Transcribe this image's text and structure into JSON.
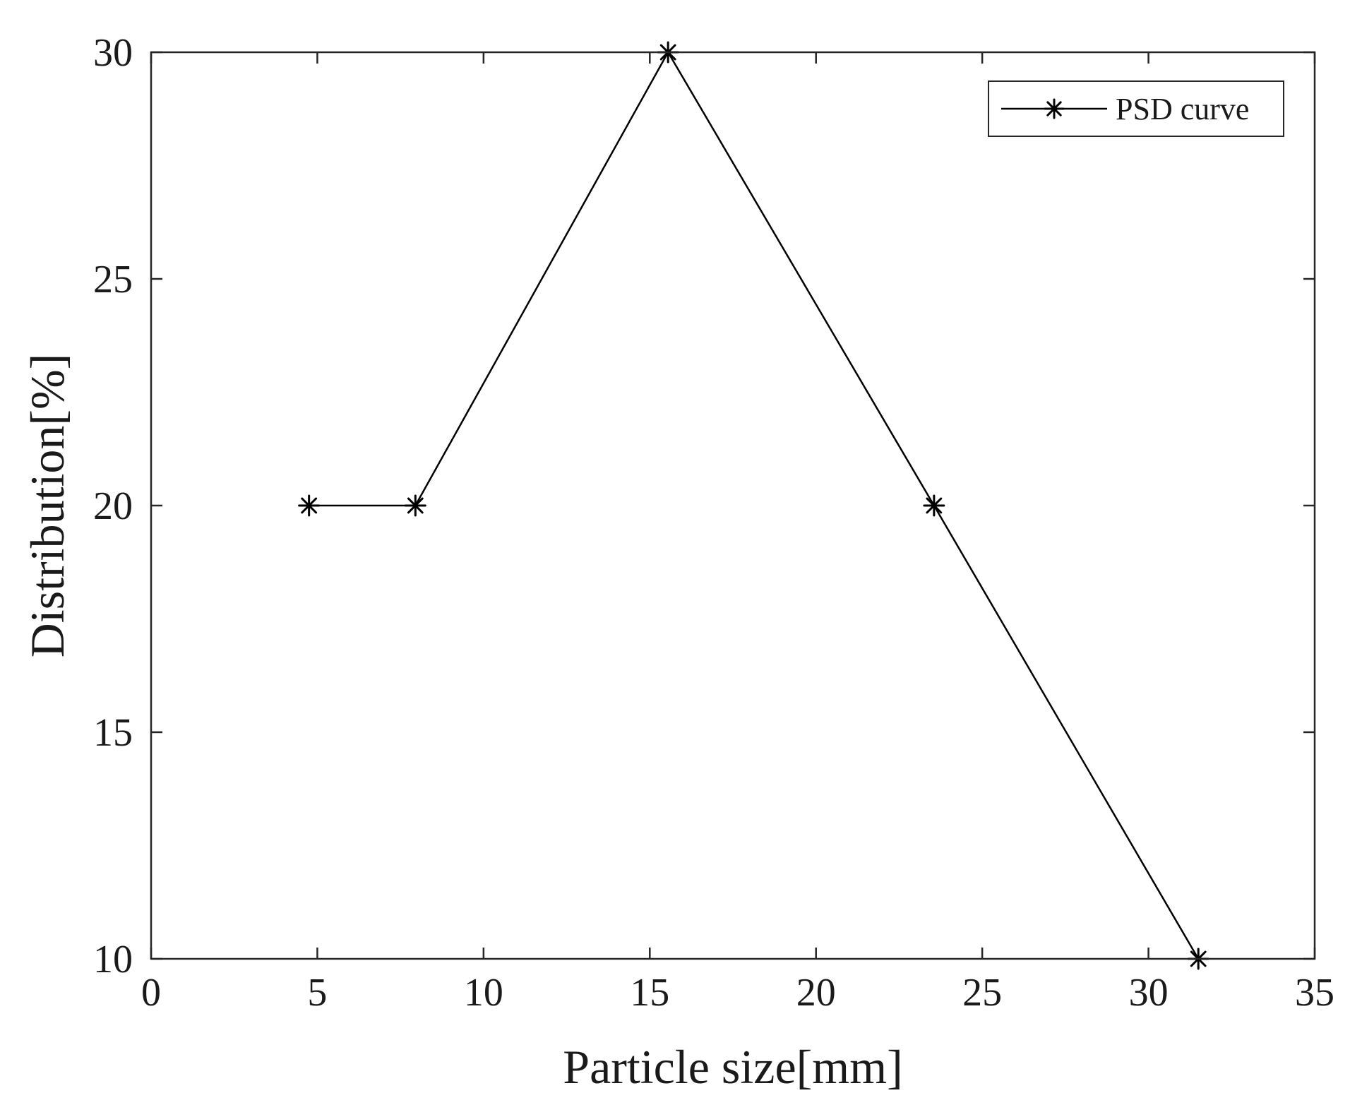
{
  "chart_data": {
    "type": "line",
    "title": "",
    "xlabel": "Particle size[mm]",
    "ylabel": "Distribution[%]",
    "xlim": [
      0,
      35
    ],
    "ylim": [
      10,
      30
    ],
    "xticks": [
      0,
      5,
      10,
      15,
      20,
      25,
      30,
      35
    ],
    "yticks": [
      10,
      15,
      20,
      25,
      30
    ],
    "xtick_labels": [
      "0",
      "5",
      "10",
      "15",
      "20",
      "25",
      "30",
      "35"
    ],
    "ytick_labels": [
      "10",
      "15",
      "20",
      "25",
      "30"
    ],
    "grid": false,
    "legend_position": "top-right",
    "series": [
      {
        "name": "PSD curve",
        "marker": "asterisk",
        "color": "#000000",
        "x": [
          4.75,
          7.95,
          15.55,
          23.55,
          31.5
        ],
        "y": [
          20,
          20,
          30,
          20,
          10
        ]
      }
    ]
  }
}
